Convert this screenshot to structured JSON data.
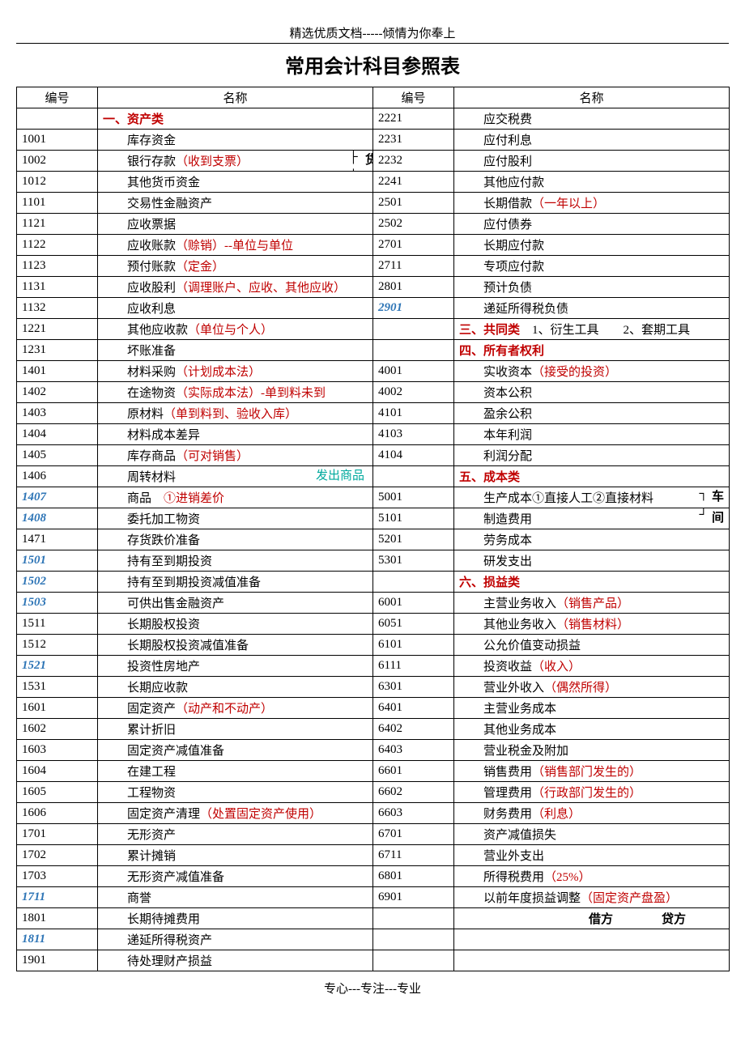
{
  "header": "精选优质文档-----倾情为你奉上",
  "title": "常用会计科目参照表",
  "footer": "专心---专注---专业",
  "col_headers": {
    "code": "编号",
    "name": "名称"
  },
  "annotations": {
    "currency": "货币资金",
    "shipped": "发出商品",
    "workshop1": "车",
    "workshop2": "间",
    "debit": "借方",
    "credit": "贷方"
  },
  "left": [
    {
      "code": "",
      "cat": "一、资产类"
    },
    {
      "code": "1001",
      "name": "库存资金"
    },
    {
      "code": "1002",
      "name": "银行存款",
      "red": "（收到支票）"
    },
    {
      "code": "1012",
      "name": "其他货币资金"
    },
    {
      "code": "1101",
      "name": "交易性金融资产"
    },
    {
      "code": "1121",
      "name": "应收票据"
    },
    {
      "code": "1122",
      "name": "应收账款",
      "red": "（赊销）--单位与单位"
    },
    {
      "code": "1123",
      "name": "预付账款",
      "red": "（定金）"
    },
    {
      "code": "1131",
      "name": "应收股利",
      "red": "（调理账户、应收、其他应收）"
    },
    {
      "code": "1132",
      "name": "应收利息"
    },
    {
      "code": "1221",
      "name": "其他应收款",
      "red": "（单位与个人）"
    },
    {
      "code": "1231",
      "name": "坏账准备"
    },
    {
      "code": "1401",
      "name": "材料采购",
      "red": "（计划成本法）"
    },
    {
      "code": "1402",
      "name": "在途物资",
      "red": "（实际成本法）-单到料未到"
    },
    {
      "code": "1403",
      "name": "原材料",
      "red": "（单到料到、验收入库）"
    },
    {
      "code": "1404",
      "name": "材料成本差异"
    },
    {
      "code": "1405",
      "name": "库存商品",
      "red": "（可对销售）"
    },
    {
      "code": "1406",
      "name": "周转材料",
      "shipped": true
    },
    {
      "code": "1407",
      "code_style": "blue",
      "name": "商品",
      "extra": "①进销差价",
      "extra_style": "red"
    },
    {
      "code": "1408",
      "code_style": "blue",
      "name": "委托加工物资"
    },
    {
      "code": "1471",
      "name": "存货跌价准备"
    },
    {
      "code": "1501",
      "code_style": "blue",
      "name": "持有至到期投资"
    },
    {
      "code": "1502",
      "code_style": "blue",
      "name": "持有至到期投资减值准备"
    },
    {
      "code": "1503",
      "code_style": "blue",
      "name": "可供出售金融资产"
    },
    {
      "code": "1511",
      "name": "长期股权投资"
    },
    {
      "code": "1512",
      "name": "长期股权投资减值准备"
    },
    {
      "code": "1521",
      "code_style": "blue",
      "name": "投资性房地产"
    },
    {
      "code": "1531",
      "name": "长期应收款"
    },
    {
      "code": "1601",
      "name": "固定资产",
      "red": "（动产和不动产）"
    },
    {
      "code": "1602",
      "name": "累计折旧"
    },
    {
      "code": "1603",
      "name": "固定资产减值准备"
    },
    {
      "code": "1604",
      "name": "在建工程"
    },
    {
      "code": "1605",
      "name": "工程物资"
    },
    {
      "code": "1606",
      "name": "固定资产清理",
      "red": "（处置固定资产使用）"
    },
    {
      "code": "1701",
      "name": "无形资产"
    },
    {
      "code": "1702",
      "name": "累计摊销"
    },
    {
      "code": "1703",
      "name": "无形资产减值准备"
    },
    {
      "code": "1711",
      "code_style": "blue",
      "name": "商誉"
    },
    {
      "code": "1801",
      "name": "长期待摊费用"
    },
    {
      "code": "1811",
      "code_style": "blue",
      "name": "递延所得税资产"
    },
    {
      "code": "1901",
      "name": "待处理财产损益"
    }
  ],
  "right": [
    {
      "code": "2221",
      "name": "应交税费"
    },
    {
      "code": "2231",
      "name": "应付利息"
    },
    {
      "code": "2232",
      "name": "应付股利"
    },
    {
      "code": "2241",
      "name": "其他应付款"
    },
    {
      "code": "2501",
      "name": "长期借款",
      "red": "（一年以上）"
    },
    {
      "code": "2502",
      "name": "应付债券"
    },
    {
      "code": "2701",
      "name": "长期应付款"
    },
    {
      "code": "2711",
      "name": "专项应付款"
    },
    {
      "code": "2801",
      "name": "预计负债"
    },
    {
      "code": "2901",
      "code_style": "blue",
      "name": "递延所得税负债"
    },
    {
      "code": "",
      "cat": "三、共同类",
      "tail": "1、衍生工具　　2、套期工具"
    },
    {
      "code": "",
      "cat": "四、所有者权利"
    },
    {
      "code": "4001",
      "name": "实收资本",
      "red": "（接受的投资）"
    },
    {
      "code": "4002",
      "name": "资本公积"
    },
    {
      "code": "4101",
      "name": "盈余公积"
    },
    {
      "code": "4103",
      "name": "本年利润"
    },
    {
      "code": "4104",
      "name": "利润分配"
    },
    {
      "code": "",
      "cat": "五、成本类"
    },
    {
      "code": "5001",
      "name": "生产成本①直接人工②直接材料",
      "workshop": 1
    },
    {
      "code": "5101",
      "name": "制造费用",
      "workshop": 2
    },
    {
      "code": "5201",
      "name": "劳务成本"
    },
    {
      "code": "5301",
      "name": "研发支出"
    },
    {
      "code": "",
      "cat": "六、损益类"
    },
    {
      "code": "6001",
      "name": "主营业务收入",
      "red": "（销售产品）"
    },
    {
      "code": "6051",
      "name": "其他业务收入",
      "red": "（销售材料）"
    },
    {
      "code": "6101",
      "name": "公允价值变动损益"
    },
    {
      "code": "6111",
      "name": "投资收益",
      "red": "（收入）"
    },
    {
      "code": "6301",
      "name": "营业外收入",
      "red": "（偶然所得）"
    },
    {
      "code": "6401",
      "name": "主营业务成本"
    },
    {
      "code": "6402",
      "name": "其他业务成本"
    },
    {
      "code": "6403",
      "name": "营业税金及附加"
    },
    {
      "code": "6601",
      "name": "销售费用",
      "red": "（销售部门发生的）"
    },
    {
      "code": "6602",
      "name": "管理费用",
      "red": "（行政部门发生的）"
    },
    {
      "code": "6603",
      "name": "财务费用",
      "red": "（利息）"
    },
    {
      "code": "6701",
      "name": "资产减值损失"
    },
    {
      "code": "6711",
      "name": "营业外支出"
    },
    {
      "code": "6801",
      "name": "所得税费用",
      "red": "（25%）"
    },
    {
      "code": "6901",
      "name": "以前年度损益调整",
      "red": "（固定资产盘盈）"
    },
    {
      "code": "",
      "borrow_credit": true
    },
    {
      "code": "",
      "empty": true
    },
    {
      "code": "",
      "empty": true
    }
  ]
}
